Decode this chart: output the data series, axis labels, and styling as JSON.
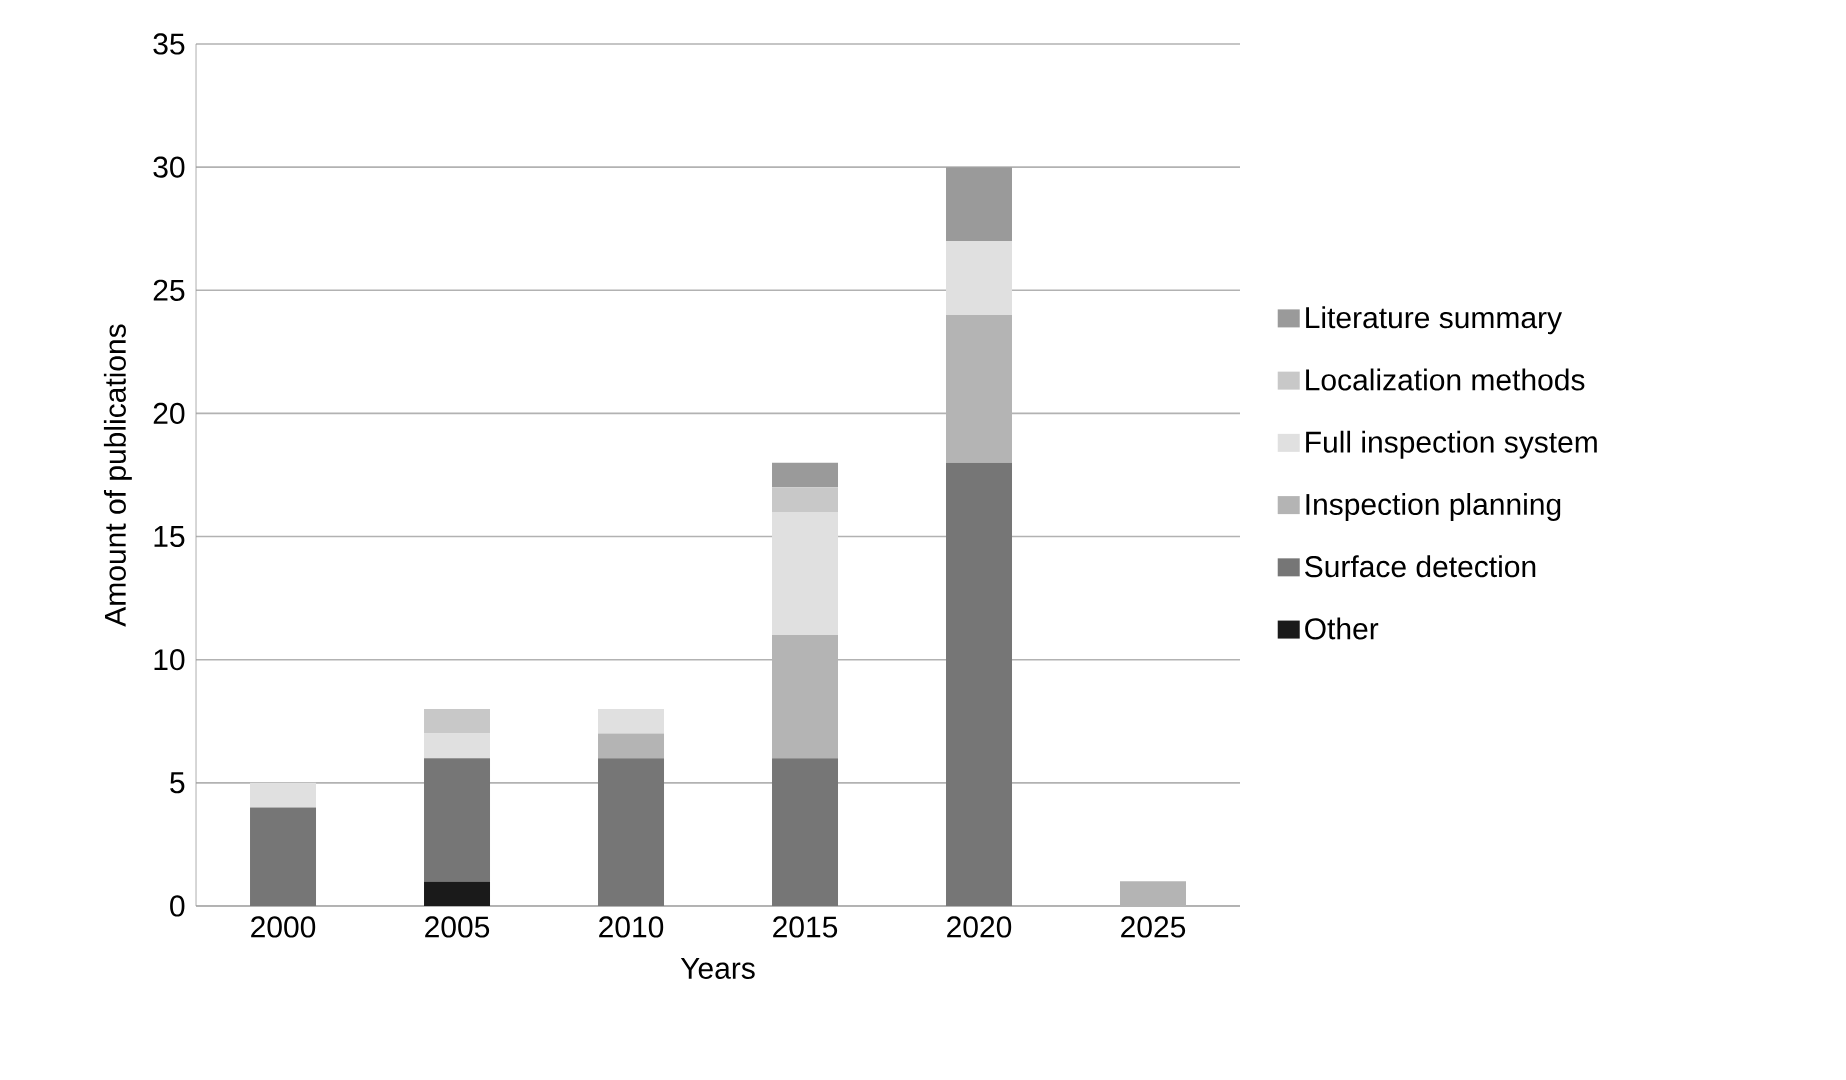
{
  "chart_data": {
    "type": "bar",
    "stacked": true,
    "xlabel": "Years",
    "ylabel": "Amount of publications",
    "categories": [
      "2000",
      "2005",
      "2010",
      "2015",
      "2020",
      "2025"
    ],
    "series": [
      {
        "name": "Other",
        "color": "#1a1a1a",
        "values": [
          0,
          1,
          0,
          0,
          0,
          0
        ]
      },
      {
        "name": "Surface detection",
        "color": "#767676",
        "values": [
          4,
          5,
          6,
          6,
          18,
          0
        ]
      },
      {
        "name": "Inspection planning",
        "color": "#b4b4b4",
        "values": [
          0,
          0,
          1,
          5,
          6,
          1
        ]
      },
      {
        "name": "Full inspection system",
        "color": "#e0e0e0",
        "values": [
          1,
          1,
          1,
          5,
          3,
          0
        ]
      },
      {
        "name": "Localization methods",
        "color": "#c8c8c8",
        "values": [
          0,
          1,
          0,
          1,
          0,
          0
        ]
      },
      {
        "name": "Literature summary",
        "color": "#9a9a9a",
        "values": [
          0,
          0,
          0,
          1,
          3,
          0
        ]
      }
    ],
    "ylim": [
      0,
      35
    ],
    "yticks": [
      0,
      5,
      10,
      15,
      20,
      25,
      30,
      35
    ],
    "grid": "y",
    "legend": "right"
  }
}
